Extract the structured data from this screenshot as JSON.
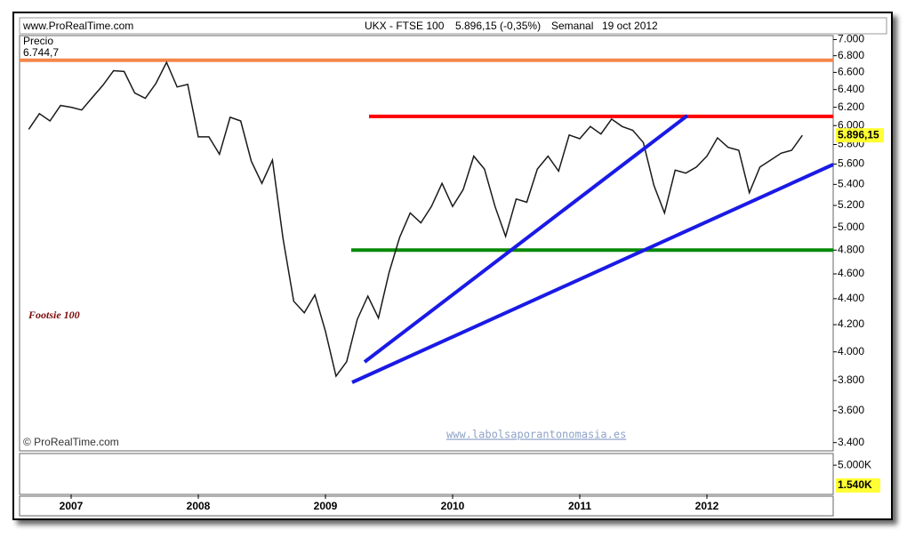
{
  "chart_data": {
    "type": "line",
    "source": "www.ProRealTime.com",
    "title": "UKX - FTSE 100",
    "quote": "5.896,15 (-0,35%)",
    "period": "Semanal",
    "date": "19 oct 2012",
    "y_label": "Precio",
    "annotation": "Footsie 100",
    "watermark": "www.labolsaporantonomasia.es",
    "copyright": "© ProRealTime.com",
    "log_scale": true,
    "categories": [
      null,
      null,
      null,
      null,
      "2007",
      null,
      null,
      null,
      null,
      null,
      null,
      null,
      null,
      null,
      null,
      null,
      "2008",
      null,
      null,
      null,
      null,
      null,
      null,
      null,
      null,
      null,
      null,
      null,
      "2009",
      null,
      null,
      null,
      null,
      null,
      null,
      null,
      null,
      null,
      null,
      null,
      "2010",
      null,
      null,
      null,
      null,
      null,
      null,
      null,
      null,
      null,
      null,
      null,
      "2011",
      null,
      null,
      null,
      null,
      null,
      null,
      null,
      null,
      null,
      null,
      null,
      "2012",
      null,
      null,
      null,
      null,
      null,
      null,
      null,
      null,
      null
    ],
    "series": [
      {
        "color": "#1a1a1a",
        "values": [
          5960,
          6130,
          6050,
          6220,
          6200,
          6170,
          6310,
          6450,
          6620,
          6610,
          6360,
          6300,
          6470,
          6720,
          6430,
          6460,
          5880,
          5880,
          5700,
          6090,
          6050,
          5630,
          5410,
          5640,
          4900,
          4380,
          4290,
          4430,
          4150,
          3830,
          3930,
          4240,
          4420,
          4250,
          4610,
          4910,
          5130,
          5040,
          5190,
          5410,
          5190,
          5350,
          5680,
          5550,
          5190,
          4920,
          5260,
          5230,
          5550,
          5680,
          5530,
          5900,
          5860,
          5990,
          5910,
          6070,
          5990,
          5950,
          5820,
          5390,
          5130,
          5540,
          5510,
          5570,
          5680,
          5870,
          5770,
          5740,
          5320,
          5570,
          5640,
          5710,
          5740,
          5896.15
        ]
      }
    ],
    "ylim": [
      3350,
      7050
    ],
    "yticks": [
      {
        "value": 7000,
        "label": "7.000"
      },
      {
        "value": 6800,
        "label": "6.800"
      },
      {
        "value": 6600,
        "label": "6.600"
      },
      {
        "value": 6400,
        "label": "6.400"
      },
      {
        "value": 6200,
        "label": "6.200"
      },
      {
        "value": 6000,
        "label": "6.000"
      },
      {
        "value": 5800,
        "label": "5.800"
      },
      {
        "value": 5600,
        "label": "5.600"
      },
      {
        "value": 5400,
        "label": "5.400"
      },
      {
        "value": 5200,
        "label": "5.200"
      },
      {
        "value": 5000,
        "label": "5.000"
      },
      {
        "value": 4800,
        "label": "4.800"
      },
      {
        "value": 4600,
        "label": "4.600"
      },
      {
        "value": 4400,
        "label": "4.400"
      },
      {
        "value": 4200,
        "label": "4.200"
      },
      {
        "value": 4000,
        "label": "4.000"
      },
      {
        "value": 3800,
        "label": "3.800"
      },
      {
        "value": 3600,
        "label": "3.600"
      },
      {
        "value": 3400,
        "label": "3.400"
      }
    ],
    "hlines": [
      {
        "value": 6744.7,
        "label": "6.744,7",
        "color": "#f4874b"
      },
      {
        "value": 6100,
        "color": "#ff0000"
      },
      {
        "value": 4800,
        "color": "#078a07"
      }
    ],
    "last_price": {
      "value": 5896.15,
      "label": "5.896,15"
    },
    "volume_ylim": [
      0,
      7000
    ],
    "volume_ticks": [
      {
        "value": 5000,
        "label": "5.000K"
      },
      {
        "value": 1540,
        "label": "1.540K"
      }
    ]
  }
}
